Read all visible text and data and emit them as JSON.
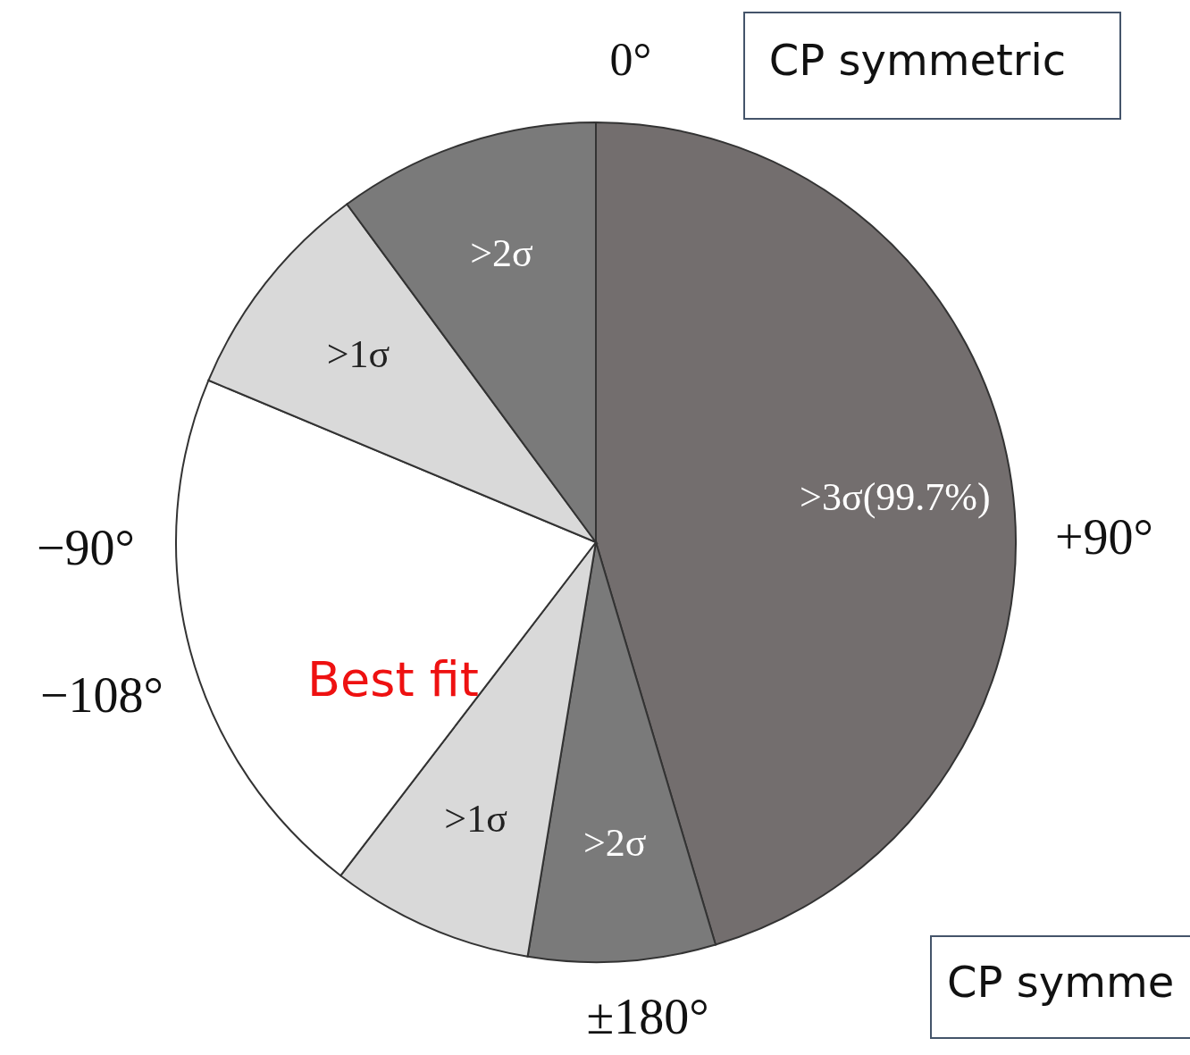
{
  "chart_data": {
    "type": "pie",
    "categories": [
      ">3σ(99.7%)",
      ">2σ",
      ">1σ",
      null,
      ">1σ",
      ">2σ"
    ],
    "values": [
      45.4,
      7.2,
      7.8,
      20.9,
      8.6,
      10.1
    ],
    "colors": [
      "#736e6e",
      "#7a7a7a",
      "#d9d9d9",
      "#ffffff",
      "#d9d9d9",
      "#7a7a7a"
    ],
    "annotations": [
      "0°",
      "+90°",
      "−90°",
      "−108°",
      "±180°",
      "CP symmetric",
      "CP symme",
      "Best fit"
    ]
  }
}
